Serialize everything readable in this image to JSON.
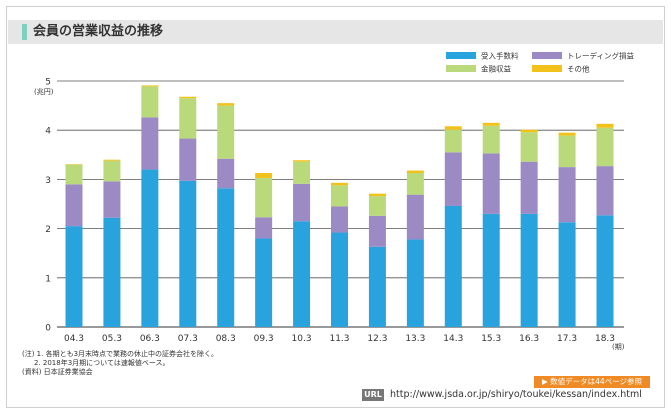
{
  "header": {
    "title": "会員の営業収益の推移"
  },
  "chart_data": {
    "type": "bar",
    "stacked": true,
    "categories": [
      "04.3",
      "05.3",
      "06.3",
      "07.3",
      "08.3",
      "09.3",
      "10.3",
      "11.3",
      "12.3",
      "13.3",
      "14.3",
      "15.3",
      "16.3",
      "17.3",
      "18.3"
    ],
    "series": [
      {
        "name": "受入手数料",
        "color": "#29a3de",
        "values": [
          2.05,
          2.22,
          3.2,
          2.97,
          2.82,
          1.8,
          2.15,
          1.92,
          1.63,
          1.78,
          2.46,
          2.3,
          2.3,
          2.13,
          2.27
        ]
      },
      {
        "name": "トレーディング損益",
        "color": "#9b8ac4",
        "values": [
          0.85,
          0.74,
          1.06,
          0.86,
          0.6,
          0.43,
          0.76,
          0.53,
          0.63,
          0.91,
          1.09,
          1.23,
          1.06,
          1.12,
          1.0
        ]
      },
      {
        "name": "金融収益",
        "color": "#b9d97a",
        "values": [
          0.4,
          0.42,
          0.63,
          0.82,
          1.08,
          0.8,
          0.45,
          0.43,
          0.4,
          0.44,
          0.46,
          0.56,
          0.6,
          0.64,
          0.78
        ]
      },
      {
        "name": "その他",
        "color": "#f2c21b",
        "values": [
          0.01,
          0.02,
          0.02,
          0.03,
          0.05,
          0.1,
          0.03,
          0.05,
          0.05,
          0.05,
          0.07,
          0.06,
          0.05,
          0.06,
          0.08
        ]
      }
    ],
    "y_unit": "(兆円)",
    "x_unit": "(期)",
    "ylim": [
      0,
      5
    ],
    "yticks": [
      0,
      1,
      2,
      3,
      4,
      5
    ],
    "grid": true,
    "legend": "top-right"
  },
  "notes": [
    "(注) 1. 各期とも3月末時点で業務の休止中の証券会社を除く。",
    "2. 2018年3月期については速報値ベース。",
    "(資料) 日本証券業協会"
  ],
  "footer": {
    "ref_label": "▶ 数値データは44ページ参照",
    "url_badge": "URL",
    "url": "http://www.jsda.or.jp/shiryo/toukei/kessan/index.html"
  }
}
